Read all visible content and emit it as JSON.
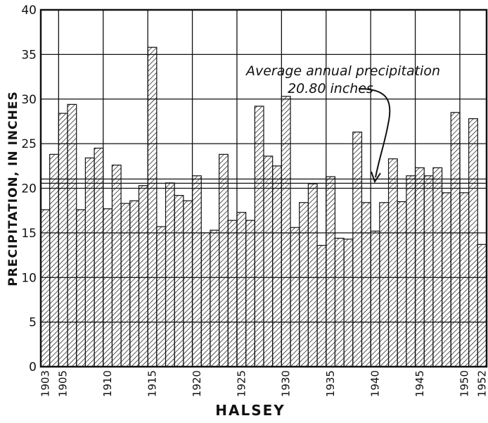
{
  "chart_data": {
    "type": "bar",
    "xlabel": "HALSEY",
    "ylabel": "PRECIPITATION, IN INCHES",
    "ylim": [
      0,
      40
    ],
    "xlim": [
      1903,
      1953
    ],
    "y_ticks": [
      0,
      5,
      10,
      15,
      20,
      25,
      30,
      35,
      40
    ],
    "x_tick_labels": [
      "1903",
      "1905",
      "1910",
      "1915",
      "1920",
      "1925",
      "1930",
      "1935",
      "1940",
      "1945",
      "1950",
      "1952"
    ],
    "x_tick_years": [
      1903,
      1905,
      1910,
      1915,
      1920,
      1925,
      1930,
      1935,
      1940,
      1945,
      1950,
      1952
    ],
    "grid": true,
    "bar_fill": "diagonal-hatch",
    "years": [
      1903,
      1904,
      1905,
      1906,
      1907,
      1908,
      1909,
      1910,
      1911,
      1912,
      1913,
      1914,
      1915,
      1916,
      1917,
      1918,
      1919,
      1920,
      1921,
      1922,
      1923,
      1924,
      1925,
      1926,
      1927,
      1928,
      1929,
      1930,
      1931,
      1932,
      1933,
      1934,
      1935,
      1936,
      1937,
      1938,
      1939,
      1940,
      1941,
      1942,
      1943,
      1944,
      1945,
      1946,
      1947,
      1948,
      1949,
      1950,
      1951,
      1952
    ],
    "values": [
      17.6,
      23.8,
      28.4,
      29.4,
      17.6,
      23.4,
      24.5,
      17.7,
      22.6,
      18.3,
      18.6,
      20.3,
      35.8,
      15.7,
      20.6,
      19.2,
      18.6,
      21.4,
      15.0,
      15.3,
      23.8,
      16.4,
      17.3,
      16.4,
      29.2,
      23.6,
      22.5,
      30.3,
      15.6,
      18.4,
      20.5,
      13.6,
      21.3,
      14.4,
      14.3,
      26.3,
      18.4,
      15.2,
      18.4,
      23.3,
      18.5,
      21.4,
      22.3,
      21.4,
      22.3,
      19.5,
      28.5,
      19.5,
      27.8,
      13.7
    ],
    "average": 20.8,
    "annotation": {
      "line1": "Average annual precipitation",
      "line2": "20.80 inches"
    }
  }
}
